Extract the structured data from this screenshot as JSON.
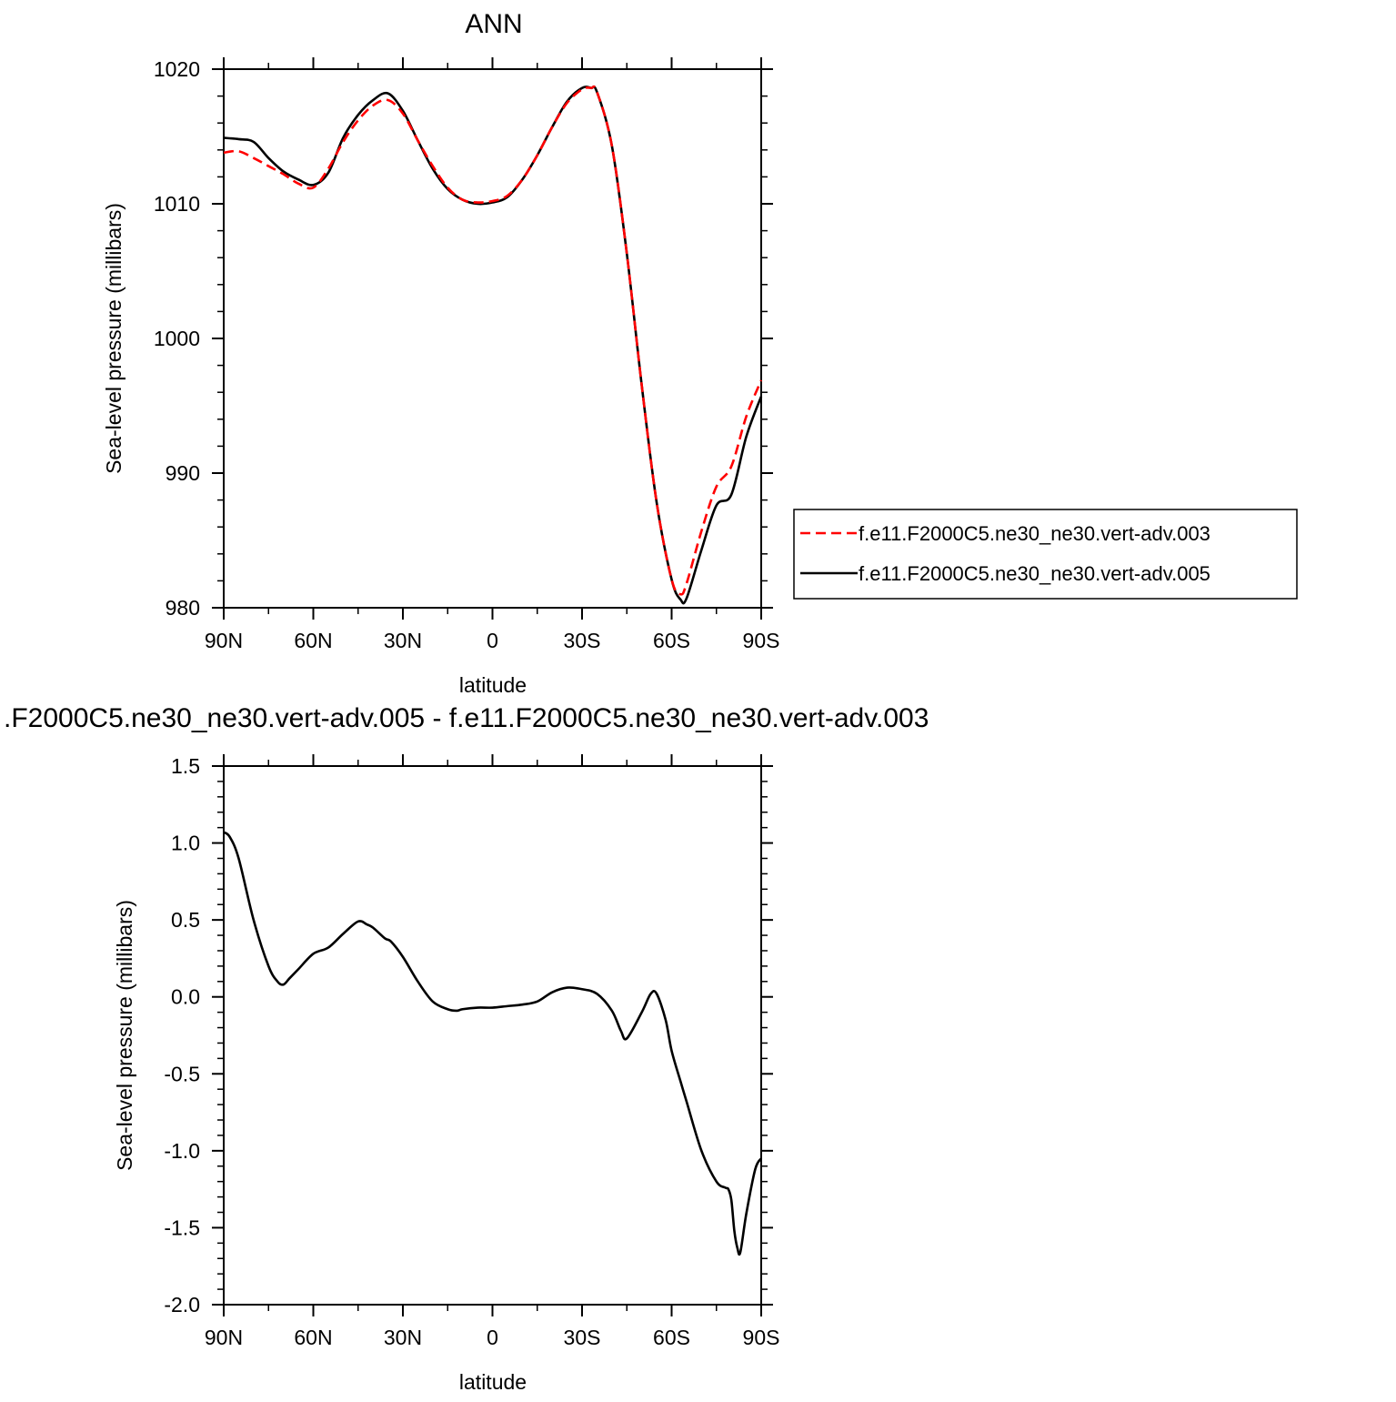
{
  "chart_data": [
    {
      "type": "line",
      "title": "ANN",
      "xlabel": "latitude",
      "ylabel": "Sea-level pressure (millibars)",
      "xlim": [
        90,
        -90
      ],
      "ylim": [
        980,
        1020
      ],
      "xticks": [
        90,
        60,
        30,
        0,
        -30,
        -60,
        -90
      ],
      "xtick_labels": [
        "90N",
        "60N",
        "30N",
        "0",
        "30S",
        "60S",
        "90S"
      ],
      "yticks": [
        980,
        990,
        1000,
        1010,
        1020
      ],
      "ytick_labels": [
        "980",
        "990",
        "1000",
        "1010",
        "1020"
      ],
      "grid": false,
      "legend_position": "right",
      "series": [
        {
          "name": "f.e11.F2000C5.ne30_ne30.vert-adv.003",
          "color": "#ff0000",
          "dash": "dashed",
          "x": [
            90,
            85,
            80,
            75,
            70,
            65,
            60,
            55,
            50,
            45,
            40,
            35,
            30,
            25,
            20,
            15,
            10,
            5,
            0,
            -5,
            -10,
            -15,
            -20,
            -25,
            -30,
            -33,
            -35,
            -40,
            -45,
            -50,
            -55,
            -60,
            -63,
            -65,
            -70,
            -75,
            -80,
            -85,
            -90
          ],
          "y": [
            1013.8,
            1013.9,
            1013.4,
            1012.8,
            1012.2,
            1011.5,
            1011.2,
            1012.6,
            1014.6,
            1016.2,
            1017.3,
            1017.7,
            1016.7,
            1014.7,
            1012.8,
            1011.2,
            1010.3,
            1010.1,
            1010.2,
            1010.6,
            1011.8,
            1013.6,
            1015.7,
            1017.5,
            1018.5,
            1018.6,
            1018.3,
            1014.3,
            1006.3,
            996.5,
            987.8,
            982.1,
            981.0,
            981.8,
            985.7,
            989.0,
            990.5,
            994.2,
            996.9
          ]
        },
        {
          "name": "f.e11.F2000C5.ne30_ne30.vert-adv.005",
          "color": "#000000",
          "dash": "solid",
          "x": [
            90,
            85,
            80,
            75,
            70,
            65,
            60,
            55,
            50,
            45,
            40,
            35,
            30,
            25,
            20,
            15,
            10,
            5,
            0,
            -5,
            -10,
            -15,
            -20,
            -25,
            -30,
            -33,
            -35,
            -40,
            -45,
            -50,
            -55,
            -60,
            -63,
            -65,
            -70,
            -75,
            -80,
            -85,
            -90
          ],
          "y": [
            1014.9,
            1014.8,
            1014.6,
            1013.4,
            1012.4,
            1011.8,
            1011.4,
            1012.3,
            1014.9,
            1016.6,
            1017.7,
            1018.2,
            1016.9,
            1014.7,
            1012.6,
            1011.1,
            1010.3,
            1010.0,
            1010.1,
            1010.5,
            1011.8,
            1013.6,
            1015.7,
            1017.6,
            1018.6,
            1018.6,
            1018.3,
            1014.3,
            1006.3,
            996.5,
            987.8,
            982.1,
            980.6,
            980.7,
            984.3,
            987.6,
            988.4,
            992.7,
            995.7
          ]
        }
      ]
    },
    {
      "type": "line",
      "title": ".F2000C5.ne30_ne30.vert-adv.005 - f.e11.F2000C5.ne30_ne30.vert-adv.003",
      "xlabel": "latitude",
      "ylabel": "Sea-level pressure (millibars)",
      "xlim": [
        90,
        -90
      ],
      "ylim": [
        -2.0,
        1.5
      ],
      "xticks": [
        90,
        60,
        30,
        0,
        -30,
        -60,
        -90
      ],
      "xtick_labels": [
        "90N",
        "60N",
        "30N",
        "0",
        "30S",
        "60S",
        "90S"
      ],
      "yticks": [
        -2.0,
        -1.5,
        -1.0,
        -0.5,
        0.0,
        0.5,
        1.0,
        1.5
      ],
      "ytick_labels": [
        "-2.0",
        "-1.5",
        "-1.0",
        "-0.5",
        "0.0",
        "0.5",
        "1.0",
        "1.5"
      ],
      "grid": false,
      "series": [
        {
          "color": "#000000",
          "dash": "solid",
          "x": [
            90,
            88,
            85,
            80,
            75,
            72,
            70,
            68,
            65,
            60,
            55,
            50,
            45,
            42,
            40,
            36,
            34,
            30,
            25,
            20,
            15,
            12,
            10,
            5,
            0,
            -5,
            -10,
            -15,
            -20,
            -25,
            -30,
            -35,
            -40,
            -43,
            -45,
            -50,
            -53,
            -55,
            -58,
            -60,
            -63,
            -65,
            -70,
            -75,
            -78,
            -79,
            -80,
            -81,
            -82,
            -83,
            -85,
            -88,
            -90
          ],
          "y": [
            1.07,
            1.04,
            0.9,
            0.5,
            0.2,
            0.1,
            0.08,
            0.12,
            0.18,
            0.28,
            0.32,
            0.41,
            0.49,
            0.47,
            0.45,
            0.38,
            0.36,
            0.26,
            0.1,
            -0.03,
            -0.08,
            -0.09,
            -0.08,
            -0.07,
            -0.07,
            -0.06,
            -0.05,
            -0.03,
            0.03,
            0.06,
            0.05,
            0.02,
            -0.09,
            -0.22,
            -0.27,
            -0.1,
            0.02,
            0.02,
            -0.15,
            -0.35,
            -0.55,
            -0.68,
            -1.0,
            -1.2,
            -1.24,
            -1.25,
            -1.32,
            -1.52,
            -1.63,
            -1.66,
            -1.41,
            -1.12,
            -1.05
          ]
        }
      ]
    }
  ],
  "legend": {
    "entries": [
      {
        "label": "f.e11.F2000C5.ne30_ne30.vert-adv.003",
        "color": "#ff0000",
        "dash": "dashed"
      },
      {
        "label": "f.e11.F2000C5.ne30_ne30.vert-adv.005",
        "color": "#000000",
        "dash": "solid"
      }
    ]
  }
}
